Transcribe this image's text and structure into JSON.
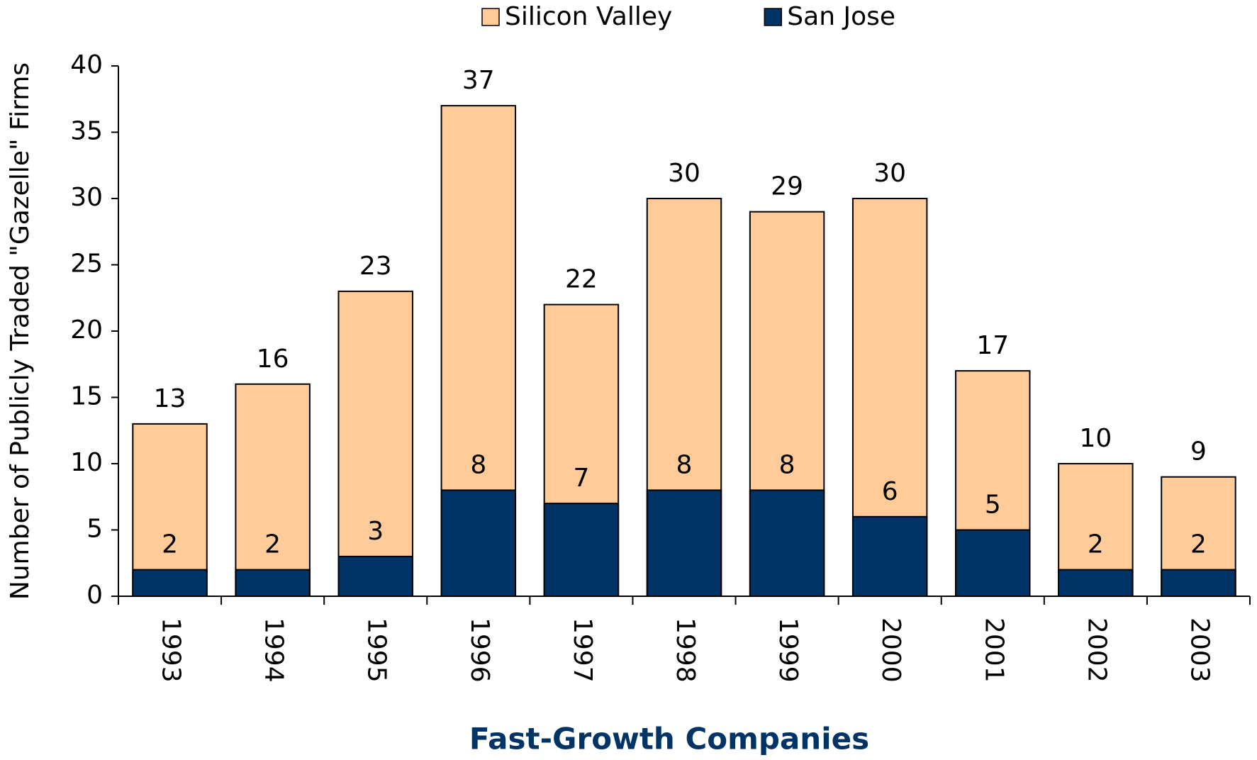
{
  "chart_data": {
    "type": "bar",
    "barmode": "overlay",
    "title": "Fast-Growth Companies",
    "y_label": "Number of Publicly Traded \"Gazelle\" Firms",
    "categories": [
      "1993",
      "1994",
      "1995",
      "1996",
      "1997",
      "1998",
      "1999",
      "2000",
      "2001",
      "2002",
      "2003"
    ],
    "series": [
      {
        "name": "Silicon Valley",
        "color": "#ffcc99",
        "values": [
          13,
          16,
          23,
          37,
          22,
          30,
          29,
          30,
          17,
          10,
          9
        ]
      },
      {
        "name": "San Jose",
        "color": "#003366",
        "values": [
          2,
          2,
          3,
          8,
          7,
          8,
          8,
          6,
          5,
          2,
          2
        ]
      }
    ],
    "ylim": [
      0,
      40
    ],
    "yticks": [
      0,
      5,
      10,
      15,
      20,
      25,
      30,
      35,
      40
    ],
    "grid": false,
    "legend": "top"
  }
}
